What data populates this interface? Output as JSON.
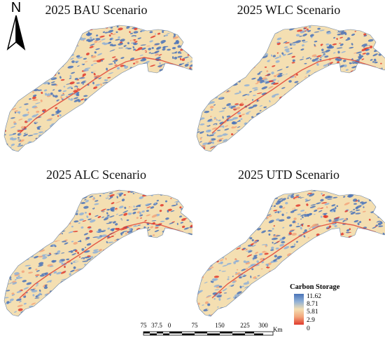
{
  "north_arrow": {
    "letter": "N",
    "icon": "north-arrow-icon"
  },
  "panels": [
    {
      "title": "2025 BAU Scenario"
    },
    {
      "title": "2025 WLC Scenario"
    },
    {
      "title": "2025 ALC Scenario"
    },
    {
      "title": "2025 UTD Scenario"
    }
  ],
  "legend": {
    "title": "Carbon Storage",
    "labels": [
      "11.62",
      "8.71",
      "5.81",
      "2.9",
      "0"
    ],
    "colors": [
      "#4a73b8",
      "#8fb0d6",
      "#f4dfb2",
      "#f2a57a",
      "#e03a2c"
    ]
  },
  "scalebar": {
    "labels": [
      "75",
      "37.5",
      "0",
      "75",
      "150",
      "225",
      "300"
    ],
    "unit": "Km"
  }
}
